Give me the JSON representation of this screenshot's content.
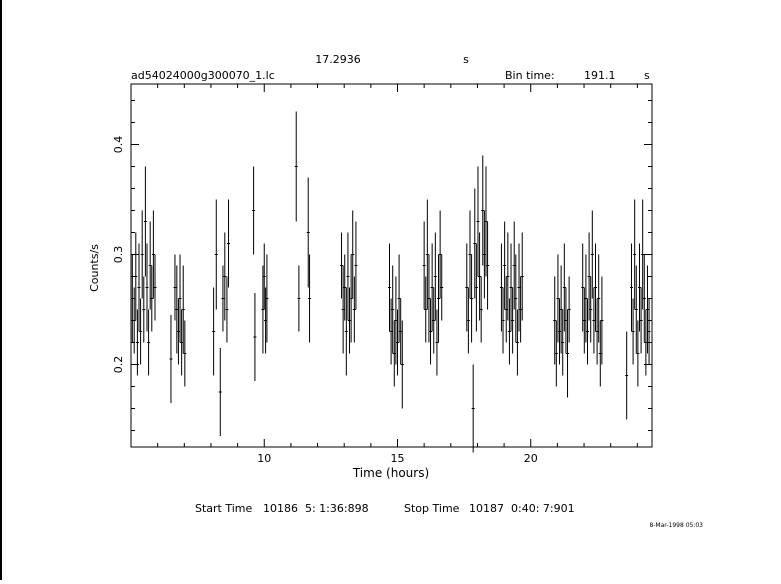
{
  "header": {
    "top_value": "17.2936",
    "top_unit": "s",
    "filename": "ad54024000g300070_1.lc",
    "bin_label": "Bin time:",
    "bin_value": "191.1",
    "bin_unit": "s"
  },
  "footer": {
    "start_label": "Start Time",
    "start_value": "10186  5: 1:36:898",
    "stop_label": "Stop Time",
    "stop_value": "10187  0:40: 7:901",
    "date_stamp": "8-Mar-1998 05:03"
  },
  "chart_data": {
    "type": "scatter",
    "xlabel": "Time (hours)",
    "ylabel": "Counts/s",
    "xlim": [
      5.0,
      24.55
    ],
    "ylim": [
      0.125,
      0.455
    ],
    "x_ticks": [
      10,
      15,
      20
    ],
    "y_ticks": [
      0.2,
      0.3,
      0.4
    ],
    "x_minor_step": 1,
    "y_minor_step": 0.02,
    "error_bars": true,
    "points": [
      [
        5.05,
        0.26,
        0.04
      ],
      [
        5.12,
        0.24,
        0.03
      ],
      [
        5.18,
        0.28,
        0.04
      ],
      [
        5.24,
        0.22,
        0.03
      ],
      [
        5.3,
        0.27,
        0.04
      ],
      [
        5.36,
        0.23,
        0.03
      ],
      [
        5.42,
        0.3,
        0.04
      ],
      [
        5.48,
        0.25,
        0.03
      ],
      [
        5.54,
        0.33,
        0.05
      ],
      [
        5.6,
        0.27,
        0.04
      ],
      [
        5.66,
        0.22,
        0.03
      ],
      [
        5.72,
        0.29,
        0.04
      ],
      [
        5.78,
        0.26,
        0.03
      ],
      [
        5.84,
        0.3,
        0.04
      ],
      [
        5.9,
        0.27,
        0.03
      ],
      [
        6.5,
        0.205,
        0.04
      ],
      [
        6.65,
        0.27,
        0.03
      ],
      [
        6.72,
        0.25,
        0.04
      ],
      [
        6.78,
        0.23,
        0.03
      ],
      [
        6.84,
        0.26,
        0.04
      ],
      [
        6.9,
        0.22,
        0.03
      ],
      [
        6.96,
        0.25,
        0.04
      ],
      [
        7.02,
        0.21,
        0.03
      ],
      [
        8.1,
        0.23,
        0.04
      ],
      [
        8.2,
        0.3,
        0.05
      ],
      [
        8.35,
        0.175,
        0.04
      ],
      [
        8.45,
        0.26,
        0.03
      ],
      [
        8.52,
        0.28,
        0.04
      ],
      [
        8.6,
        0.25,
        0.03
      ],
      [
        8.66,
        0.31,
        0.04
      ],
      [
        9.6,
        0.34,
        0.04
      ],
      [
        9.65,
        0.225,
        0.04
      ],
      [
        9.95,
        0.25,
        0.04
      ],
      [
        10.0,
        0.28,
        0.03
      ],
      [
        10.05,
        0.24,
        0.03
      ],
      [
        10.1,
        0.26,
        0.04
      ],
      [
        11.2,
        0.38,
        0.05
      ],
      [
        11.3,
        0.26,
        0.03
      ],
      [
        11.65,
        0.32,
        0.05
      ],
      [
        11.7,
        0.26,
        0.04
      ],
      [
        12.9,
        0.29,
        0.03
      ],
      [
        12.96,
        0.25,
        0.04
      ],
      [
        13.02,
        0.27,
        0.03
      ],
      [
        13.08,
        0.23,
        0.04
      ],
      [
        13.14,
        0.28,
        0.04
      ],
      [
        13.2,
        0.24,
        0.03
      ],
      [
        13.26,
        0.26,
        0.04
      ],
      [
        13.32,
        0.3,
        0.04
      ],
      [
        13.38,
        0.25,
        0.03
      ],
      [
        13.44,
        0.29,
        0.04
      ],
      [
        14.7,
        0.27,
        0.04
      ],
      [
        14.76,
        0.23,
        0.03
      ],
      [
        14.82,
        0.25,
        0.04
      ],
      [
        14.88,
        0.21,
        0.03
      ],
      [
        14.94,
        0.24,
        0.04
      ],
      [
        15.0,
        0.22,
        0.03
      ],
      [
        15.06,
        0.26,
        0.04
      ],
      [
        15.12,
        0.23,
        0.03
      ],
      [
        15.18,
        0.2,
        0.04
      ],
      [
        16.0,
        0.29,
        0.04
      ],
      [
        16.06,
        0.25,
        0.03
      ],
      [
        16.12,
        0.3,
        0.05
      ],
      [
        16.18,
        0.26,
        0.04
      ],
      [
        16.24,
        0.23,
        0.03
      ],
      [
        16.3,
        0.27,
        0.04
      ],
      [
        16.36,
        0.24,
        0.03
      ],
      [
        16.42,
        0.28,
        0.04
      ],
      [
        16.48,
        0.22,
        0.03
      ],
      [
        16.54,
        0.26,
        0.04
      ],
      [
        16.6,
        0.3,
        0.04
      ],
      [
        16.66,
        0.27,
        0.03
      ],
      [
        17.6,
        0.27,
        0.04
      ],
      [
        17.66,
        0.24,
        0.03
      ],
      [
        17.72,
        0.3,
        0.04
      ],
      [
        17.78,
        0.26,
        0.04
      ],
      [
        17.84,
        0.16,
        0.04
      ],
      [
        17.9,
        0.31,
        0.05
      ],
      [
        17.96,
        0.27,
        0.04
      ],
      [
        18.02,
        0.33,
        0.05
      ],
      [
        18.08,
        0.28,
        0.04
      ],
      [
        18.14,
        0.25,
        0.03
      ],
      [
        18.2,
        0.34,
        0.05
      ],
      [
        18.26,
        0.3,
        0.04
      ],
      [
        18.32,
        0.33,
        0.05
      ],
      [
        18.38,
        0.29,
        0.04
      ],
      [
        18.9,
        0.27,
        0.04
      ],
      [
        18.96,
        0.24,
        0.03
      ],
      [
        19.02,
        0.29,
        0.04
      ],
      [
        19.08,
        0.25,
        0.03
      ],
      [
        19.14,
        0.28,
        0.04
      ],
      [
        19.2,
        0.23,
        0.03
      ],
      [
        19.26,
        0.27,
        0.04
      ],
      [
        19.32,
        0.24,
        0.03
      ],
      [
        19.38,
        0.29,
        0.04
      ],
      [
        19.44,
        0.26,
        0.04
      ],
      [
        19.5,
        0.22,
        0.03
      ],
      [
        19.56,
        0.27,
        0.04
      ],
      [
        19.62,
        0.25,
        0.03
      ],
      [
        19.68,
        0.28,
        0.04
      ],
      [
        20.9,
        0.24,
        0.04
      ],
      [
        20.96,
        0.21,
        0.03
      ],
      [
        21.02,
        0.26,
        0.04
      ],
      [
        21.08,
        0.23,
        0.03
      ],
      [
        21.14,
        0.25,
        0.04
      ],
      [
        21.2,
        0.22,
        0.03
      ],
      [
        21.26,
        0.27,
        0.04
      ],
      [
        21.32,
        0.24,
        0.03
      ],
      [
        21.38,
        0.21,
        0.04
      ],
      [
        21.44,
        0.25,
        0.03
      ],
      [
        21.95,
        0.27,
        0.04
      ],
      [
        22.01,
        0.24,
        0.03
      ],
      [
        22.07,
        0.26,
        0.04
      ],
      [
        22.13,
        0.23,
        0.03
      ],
      [
        22.19,
        0.28,
        0.04
      ],
      [
        22.25,
        0.25,
        0.03
      ],
      [
        22.31,
        0.3,
        0.04
      ],
      [
        22.37,
        0.24,
        0.03
      ],
      [
        22.43,
        0.27,
        0.04
      ],
      [
        22.49,
        0.23,
        0.03
      ],
      [
        22.55,
        0.26,
        0.04
      ],
      [
        22.61,
        0.21,
        0.03
      ],
      [
        22.67,
        0.24,
        0.04
      ],
      [
        23.6,
        0.19,
        0.04
      ],
      [
        23.78,
        0.27,
        0.04
      ],
      [
        23.84,
        0.23,
        0.03
      ],
      [
        23.9,
        0.3,
        0.05
      ],
      [
        23.96,
        0.25,
        0.04
      ],
      [
        24.02,
        0.21,
        0.03
      ],
      [
        24.08,
        0.27,
        0.04
      ],
      [
        24.14,
        0.24,
        0.03
      ],
      [
        24.2,
        0.3,
        0.05
      ],
      [
        24.26,
        0.26,
        0.04
      ],
      [
        24.32,
        0.22,
        0.03
      ],
      [
        24.38,
        0.25,
        0.04
      ],
      [
        24.44,
        0.23,
        0.03
      ]
    ]
  }
}
